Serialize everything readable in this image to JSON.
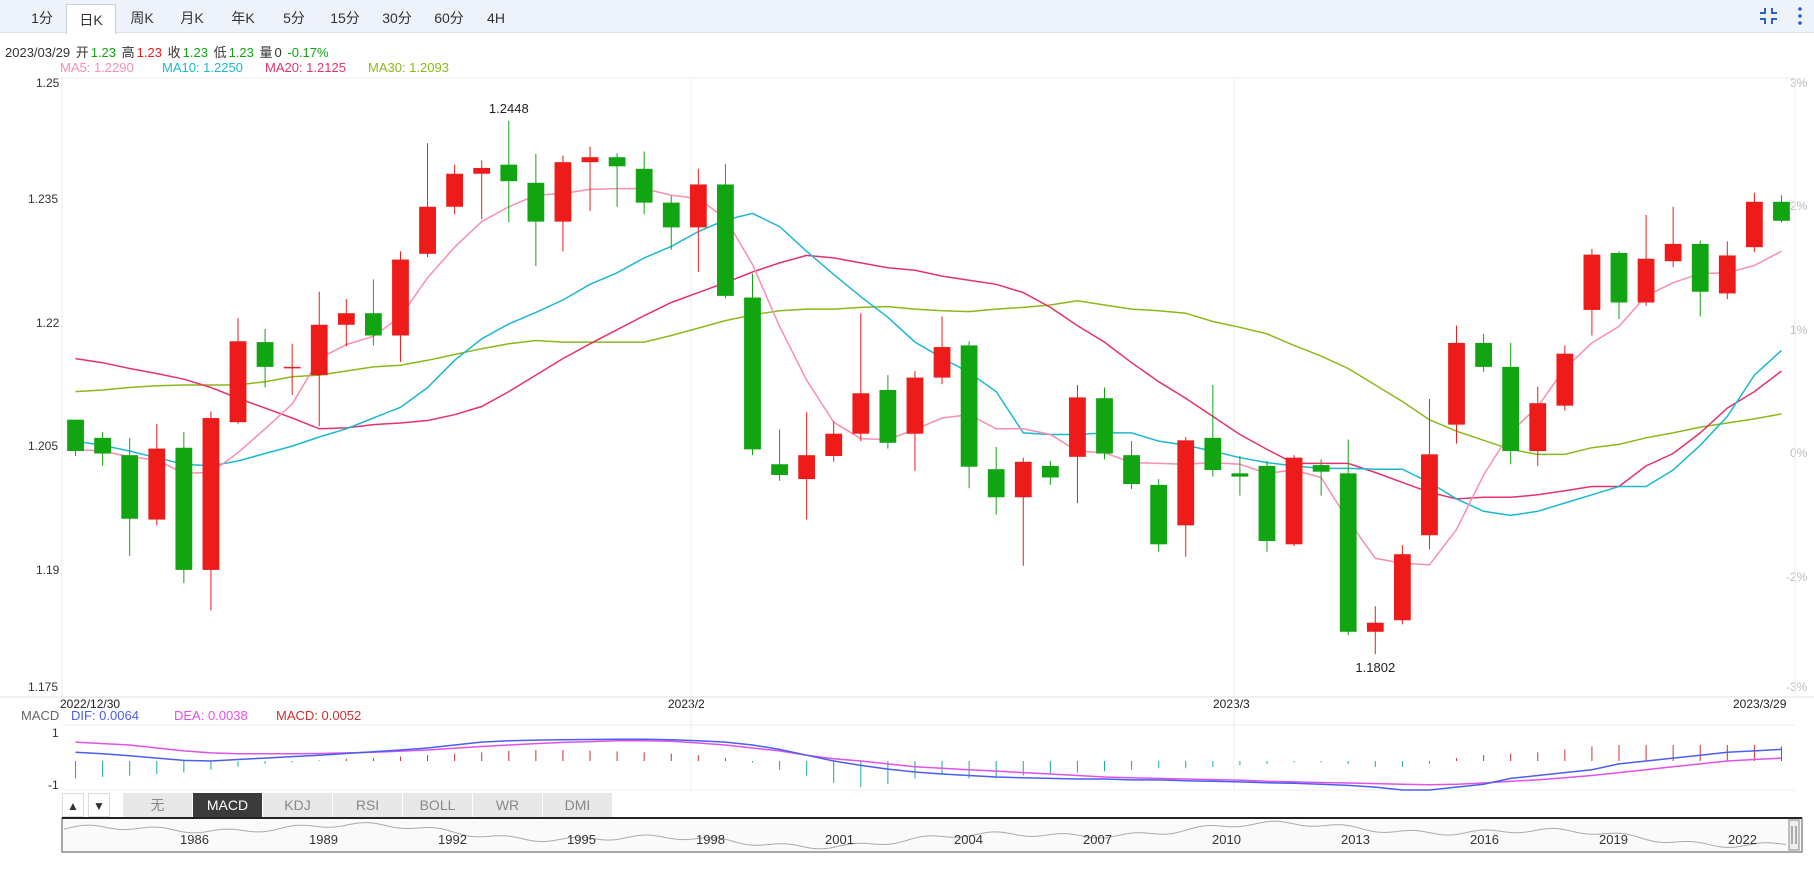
{
  "tabs": [
    {
      "label": "1分",
      "active": false
    },
    {
      "label": "日K",
      "active": true
    },
    {
      "label": "周K",
      "active": false
    },
    {
      "label": "月K",
      "active": false
    },
    {
      "label": "年K",
      "active": false
    },
    {
      "label": "5分",
      "active": false
    },
    {
      "label": "15分",
      "active": false
    },
    {
      "label": "30分",
      "active": false
    },
    {
      "label": "60分",
      "active": false
    },
    {
      "label": "4H",
      "active": false
    }
  ],
  "toolbar_icons": [
    "collapse-icon",
    "more-icon"
  ],
  "info": {
    "date": "2023/03/29",
    "open_label": "开",
    "open": "1.23",
    "high_label": "高",
    "high": "1.23",
    "close_label": "收",
    "close": "1.23",
    "low_label": "低",
    "low": "1.23",
    "vol_label": "量",
    "vol": "0",
    "change": "-0.17%"
  },
  "ma": {
    "ma5": "MA5: 1.2290",
    "ma10": "MA10: 1.2250",
    "ma20": "MA20: 1.2125",
    "ma30": "MA30: 1.2093"
  },
  "macd": {
    "label": "MACD",
    "dif": "DIF: 0.0064",
    "dea": "DEA: 0.0038",
    "macd": "MACD: 0.0052",
    "y_top": "1",
    "y_bottom": "-1"
  },
  "indicator_buttons": [
    "无",
    "MACD",
    "KDJ",
    "RSI",
    "BOLL",
    "WR",
    "DMI"
  ],
  "active_indicator": "MACD",
  "nav_arrows": [
    "▲",
    "▼"
  ],
  "navigator_years": [
    "1986",
    "1989",
    "1992",
    "1995",
    "1998",
    "2001",
    "2004",
    "2007",
    "2010",
    "2013",
    "2016",
    "2019",
    "2022"
  ],
  "colors": {
    "up": "#ee1b1b",
    "down": "#11a511",
    "ma5": "#f78fb1",
    "ma10": "#1cb7d1",
    "ma20": "#e3336a",
    "ma30": "#8cb81a",
    "dif": "#4a5ef0",
    "dea": "#e052e8"
  },
  "chart_data": {
    "type": "candlestick",
    "y_ticks": [
      "1.25",
      "1.235",
      "1.22",
      "1.205",
      "1.19",
      "1.175"
    ],
    "ylim": [
      1.175,
      1.25
    ],
    "right_ticks": [
      "3%",
      "2%",
      "1%",
      "0%",
      "-2%",
      "-3%"
    ],
    "x_labels": [
      "2022/12/30",
      "2023/2",
      "2023/3",
      "2023/3/29"
    ],
    "annotations": {
      "max": "1.2448",
      "min": "1.1802"
    },
    "candles": [
      {
        "o": 1.2086,
        "c": 1.2048,
        "h": 1.2086,
        "l": 1.2042
      },
      {
        "o": 1.2064,
        "c": 1.2045,
        "h": 1.2071,
        "l": 1.203
      },
      {
        "o": 1.2043,
        "c": 1.1966,
        "h": 1.2064,
        "l": 1.1921
      },
      {
        "o": 1.1965,
        "c": 1.2051,
        "h": 1.2081,
        "l": 1.1958
      },
      {
        "o": 1.2052,
        "c": 1.1904,
        "h": 1.2071,
        "l": 1.1888
      },
      {
        "o": 1.1904,
        "c": 1.2088,
        "h": 1.2096,
        "l": 1.1855
      },
      {
        "o": 1.2083,
        "c": 1.2181,
        "h": 1.2209,
        "l": 1.2081
      },
      {
        "o": 1.218,
        "c": 1.215,
        "h": 1.2196,
        "l": 1.2125
      },
      {
        "o": 1.215,
        "c": 1.215,
        "h": 1.2178,
        "l": 1.2116
      },
      {
        "o": 1.214,
        "c": 1.2201,
        "h": 1.2241,
        "l": 1.2078
      },
      {
        "o": 1.2201,
        "c": 1.2215,
        "h": 1.2232,
        "l": 1.2175
      },
      {
        "o": 1.2215,
        "c": 1.2188,
        "h": 1.2256,
        "l": 1.2176
      },
      {
        "o": 1.2188,
        "c": 1.228,
        "h": 1.229,
        "l": 1.2156
      },
      {
        "o": 1.2287,
        "c": 1.2344,
        "h": 1.2421,
        "l": 1.2283
      },
      {
        "o": 1.2344,
        "c": 1.2384,
        "h": 1.2395,
        "l": 1.2335
      },
      {
        "o": 1.2384,
        "c": 1.2391,
        "h": 1.24,
        "l": 1.2329
      },
      {
        "o": 1.2395,
        "c": 1.2375,
        "h": 1.2448,
        "l": 1.2325
      },
      {
        "o": 1.2373,
        "c": 1.2326,
        "h": 1.2408,
        "l": 1.2272
      },
      {
        "o": 1.2326,
        "c": 1.2398,
        "h": 1.2406,
        "l": 1.229
      },
      {
        "o": 1.2398,
        "c": 1.2404,
        "h": 1.2417,
        "l": 1.2339
      },
      {
        "o": 1.2404,
        "c": 1.2393,
        "h": 1.2409,
        "l": 1.2344
      },
      {
        "o": 1.239,
        "c": 1.2349,
        "h": 1.2411,
        "l": 1.2335
      },
      {
        "o": 1.2349,
        "c": 1.2319,
        "h": 1.2357,
        "l": 1.2292
      },
      {
        "o": 1.2319,
        "c": 1.2371,
        "h": 1.239,
        "l": 1.2265
      },
      {
        "o": 1.2371,
        "c": 1.2236,
        "h": 1.2396,
        "l": 1.2233
      },
      {
        "o": 1.2234,
        "c": 1.205,
        "h": 1.2263,
        "l": 1.2043
      },
      {
        "o": 1.2032,
        "c": 1.2019,
        "h": 1.2074,
        "l": 1.2012
      },
      {
        "o": 1.2014,
        "c": 1.2043,
        "h": 1.2095,
        "l": 1.1965
      },
      {
        "o": 1.2042,
        "c": 1.2069,
        "h": 1.2084,
        "l": 1.2035
      },
      {
        "o": 1.2069,
        "c": 1.2118,
        "h": 1.2215,
        "l": 1.206
      },
      {
        "o": 1.2122,
        "c": 1.2058,
        "h": 1.214,
        "l": 1.2051
      },
      {
        "o": 1.2069,
        "c": 1.2137,
        "h": 1.2145,
        "l": 1.2024
      },
      {
        "o": 1.2137,
        "c": 1.2174,
        "h": 1.2211,
        "l": 1.2129
      },
      {
        "o": 1.2176,
        "c": 1.2029,
        "h": 1.2181,
        "l": 1.2003
      },
      {
        "o": 1.2026,
        "c": 1.1992,
        "h": 1.2053,
        "l": 1.1971
      },
      {
        "o": 1.1992,
        "c": 1.2035,
        "h": 1.204,
        "l": 1.1909
      },
      {
        "o": 1.203,
        "c": 1.2016,
        "h": 1.2036,
        "l": 1.2007
      },
      {
        "o": 1.2041,
        "c": 1.2113,
        "h": 1.2128,
        "l": 1.1985
      },
      {
        "o": 1.2112,
        "c": 1.2045,
        "h": 1.2125,
        "l": 1.2038
      },
      {
        "o": 1.2043,
        "c": 1.2008,
        "h": 1.206,
        "l": 1.2002
      },
      {
        "o": 1.2007,
        "c": 1.1935,
        "h": 1.2014,
        "l": 1.1926
      },
      {
        "o": 1.1958,
        "c": 1.2061,
        "h": 1.2065,
        "l": 1.192
      },
      {
        "o": 1.2064,
        "c": 1.2025,
        "h": 1.2128,
        "l": 1.2017
      },
      {
        "o": 1.2021,
        "c": 1.2017,
        "h": 1.2042,
        "l": 1.1994
      },
      {
        "o": 1.203,
        "c": 1.1939,
        "h": 1.2036,
        "l": 1.1926
      },
      {
        "o": 1.1935,
        "c": 1.204,
        "h": 1.2043,
        "l": 1.1933
      },
      {
        "o": 1.2031,
        "c": 1.2023,
        "h": 1.2038,
        "l": 1.1994
      },
      {
        "o": 1.2021,
        "c": 1.1829,
        "h": 1.2062,
        "l": 1.1825
      },
      {
        "o": 1.1829,
        "c": 1.184,
        "h": 1.186,
        "l": 1.1802
      },
      {
        "o": 1.1843,
        "c": 1.1923,
        "h": 1.1934,
        "l": 1.1838
      },
      {
        "o": 1.1946,
        "c": 1.2044,
        "h": 1.2111,
        "l": 1.1929
      },
      {
        "o": 1.208,
        "c": 1.2179,
        "h": 1.22,
        "l": 1.2057
      },
      {
        "o": 1.2179,
        "c": 1.215,
        "h": 1.219,
        "l": 1.2144
      },
      {
        "o": 1.215,
        "c": 1.2048,
        "h": 1.2179,
        "l": 1.2032
      },
      {
        "o": 1.2048,
        "c": 1.2106,
        "h": 1.2126,
        "l": 1.203
      },
      {
        "o": 1.2103,
        "c": 1.2166,
        "h": 1.2176,
        "l": 1.2097
      },
      {
        "o": 1.2219,
        "c": 1.2286,
        "h": 1.2293,
        "l": 1.2188
      },
      {
        "o": 1.2288,
        "c": 1.2228,
        "h": 1.229,
        "l": 1.2208
      },
      {
        "o": 1.2228,
        "c": 1.2281,
        "h": 1.2334,
        "l": 1.2224
      },
      {
        "o": 1.2278,
        "c": 1.2299,
        "h": 1.2344,
        "l": 1.2271
      },
      {
        "o": 1.2299,
        "c": 1.2241,
        "h": 1.2303,
        "l": 1.2211
      },
      {
        "o": 1.2239,
        "c": 1.2285,
        "h": 1.2302,
        "l": 1.2232
      },
      {
        "o": 1.2295,
        "c": 1.235,
        "h": 1.2361,
        "l": 1.2289
      },
      {
        "o": 1.235,
        "c": 1.2327,
        "h": 1.2358,
        "l": 1.2325
      }
    ],
    "ma5": [
      1.205,
      1.2048,
      1.2041,
      1.2037,
      1.2021,
      1.2022,
      1.2046,
      1.2075,
      1.2105,
      1.216,
      1.2177,
      1.2187,
      1.2211,
      1.2258,
      1.2295,
      1.2326,
      1.2344,
      1.2358,
      1.236,
      1.2365,
      1.2366,
      1.2366,
      1.2358,
      1.2354,
      1.233,
      1.2274,
      1.2199,
      1.2134,
      1.2083,
      1.2063,
      1.2062,
      1.2074,
      1.2088,
      1.2092,
      1.2075,
      1.2075,
      1.2068,
      1.2048,
      1.2046,
      1.2034,
      1.2033,
      1.2032,
      1.2034,
      1.2032,
      1.2021,
      1.2025,
      1.2016,
      1.1964,
      1.1918,
      1.1912,
      1.191,
      1.1953,
      1.2019,
      1.2071,
      1.2102,
      1.2148,
      1.2179,
      1.2199,
      1.2236,
      1.2252,
      1.2263,
      1.2264,
      1.2273,
      1.229
    ],
    "ma10": [
      1.206,
      1.2055,
      1.2048,
      1.204,
      1.2032,
      1.203,
      1.2036,
      1.2045,
      1.2054,
      1.2065,
      1.2075,
      1.2088,
      1.2101,
      1.2125,
      1.2158,
      1.2184,
      1.2202,
      1.2216,
      1.2231,
      1.225,
      1.2264,
      1.2282,
      1.2296,
      1.2314,
      1.2328,
      1.2336,
      1.232,
      1.229,
      1.2262,
      1.2235,
      1.221,
      1.218,
      1.2161,
      1.2143,
      1.212,
      1.207,
      1.2068,
      1.2068,
      1.207,
      1.207,
      1.206,
      1.2055,
      1.2048,
      1.204,
      1.2034,
      1.203,
      1.2027,
      1.2027,
      1.2026,
      1.2026,
      1.201,
      1.199,
      1.1975,
      1.197,
      1.1975,
      1.1985,
      1.1995,
      1.2005,
      1.2005,
      1.2025,
      1.2055,
      1.209,
      1.214,
      1.217
    ],
    "ma20": [
      1.216,
      1.2155,
      1.2148,
      1.2142,
      1.2135,
      1.2125,
      1.2112,
      1.21,
      1.2088,
      1.2075,
      1.2076,
      1.208,
      1.2082,
      1.2085,
      1.2092,
      1.2102,
      1.212,
      1.214,
      1.216,
      1.2178,
      1.2195,
      1.2212,
      1.2228,
      1.224,
      1.2252,
      1.2265,
      1.2276,
      1.2285,
      1.2282,
      1.2276,
      1.227,
      1.2267,
      1.226,
      1.2255,
      1.225,
      1.224,
      1.2222,
      1.22,
      1.218,
      1.2155,
      1.2132,
      1.2112,
      1.209,
      1.2068,
      1.205,
      1.2033,
      1.2033,
      1.2033,
      1.2022,
      1.201,
      1.1998,
      1.199,
      1.1992,
      1.1992,
      1.1995,
      1.2,
      1.2005,
      1.2005,
      1.203,
      1.2045,
      1.207,
      1.21,
      1.212,
      1.2145
    ],
    "ma30": [
      1.212,
      1.2122,
      1.2125,
      1.2127,
      1.2128,
      1.2128,
      1.2128,
      1.2132,
      1.2138,
      1.214,
      1.2145,
      1.215,
      1.2152,
      1.2158,
      1.2165,
      1.2172,
      1.2178,
      1.2182,
      1.218,
      1.218,
      1.218,
      1.218,
      1.2188,
      1.2197,
      1.2206,
      1.2213,
      1.2218,
      1.222,
      1.222,
      1.2222,
      1.2223,
      1.222,
      1.2218,
      1.2217,
      1.222,
      1.2222,
      1.2225,
      1.223,
      1.2225,
      1.222,
      1.2218,
      1.2215,
      1.2205,
      1.2198,
      1.219,
      1.2176,
      1.2163,
      1.2148,
      1.2128,
      1.2108,
      1.2086,
      1.2072,
      1.2061,
      1.205,
      1.2044,
      1.2044,
      1.2052,
      1.2056,
      1.2064,
      1.207,
      1.2077,
      1.2082,
      1.2087,
      1.2093
    ],
    "macd_hist": [
      -0.6,
      -0.55,
      -0.5,
      -0.45,
      -0.4,
      -0.3,
      -0.2,
      -0.1,
      -0.05,
      0.02,
      0.08,
      0.1,
      0.15,
      0.2,
      0.25,
      0.3,
      0.35,
      0.38,
      0.38,
      0.36,
      0.33,
      0.3,
      0.25,
      0.2,
      0.1,
      -0.05,
      -0.3,
      -0.5,
      -0.75,
      -0.9,
      -0.8,
      -0.6,
      -0.45,
      -0.6,
      -0.6,
      -0.5,
      -0.45,
      -0.4,
      -0.35,
      -0.3,
      -0.25,
      -0.25,
      -0.2,
      -0.15,
      -0.1,
      -0.05,
      -0.05,
      -0.1,
      -0.2,
      -0.2,
      -0.1,
      0.1,
      0.2,
      0.25,
      0.3,
      0.4,
      0.5,
      0.55,
      0.55,
      0.55,
      0.55,
      0.55,
      0.55,
      0.5
    ],
    "dif": [
      0.3,
      0.25,
      0.18,
      0.1,
      0.02,
      0.0,
      0.05,
      0.1,
      0.15,
      0.2,
      0.26,
      0.32,
      0.38,
      0.45,
      0.55,
      0.65,
      0.7,
      0.72,
      0.73,
      0.74,
      0.75,
      0.75,
      0.73,
      0.7,
      0.65,
      0.55,
      0.4,
      0.2,
      0.0,
      -0.15,
      -0.28,
      -0.38,
      -0.45,
      -0.5,
      -0.55,
      -0.58,
      -0.6,
      -0.62,
      -0.62,
      -0.65,
      -0.65,
      -0.68,
      -0.7,
      -0.72,
      -0.75,
      -0.77,
      -0.8,
      -0.84,
      -0.9,
      -1.0,
      -1.0,
      -0.9,
      -0.8,
      -0.6,
      -0.5,
      -0.4,
      -0.3,
      -0.1,
      0.0,
      0.1,
      0.2,
      0.3,
      0.35,
      0.4
    ],
    "dea": [
      0.65,
      0.6,
      0.55,
      0.45,
      0.35,
      0.28,
      0.25,
      0.25,
      0.25,
      0.26,
      0.28,
      0.3,
      0.34,
      0.38,
      0.44,
      0.5,
      0.55,
      0.6,
      0.64,
      0.67,
      0.7,
      0.7,
      0.68,
      0.62,
      0.55,
      0.45,
      0.35,
      0.2,
      0.08,
      0.0,
      -0.1,
      -0.2,
      -0.25,
      -0.3,
      -0.35,
      -0.4,
      -0.45,
      -0.5,
      -0.55,
      -0.58,
      -0.6,
      -0.62,
      -0.64,
      -0.66,
      -0.7,
      -0.72,
      -0.74,
      -0.76,
      -0.78,
      -0.8,
      -0.82,
      -0.8,
      -0.76,
      -0.7,
      -0.65,
      -0.58,
      -0.5,
      -0.4,
      -0.3,
      -0.2,
      -0.1,
      0.0,
      0.05,
      0.1
    ],
    "macd_ylim": [
      -1,
      1
    ]
  }
}
